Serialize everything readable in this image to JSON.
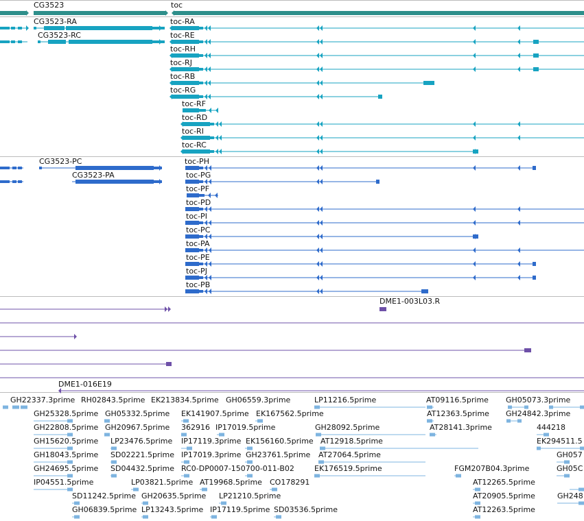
{
  "colors": {
    "gene": "#2e8f8b",
    "transcript_a": "#17a3c1",
    "transcript_b": "#2e6bcb",
    "clone": "#6e50a8",
    "est": "#7eb4e0",
    "divider": "#bbbbbb"
  },
  "genes": [
    {
      "label": "CG3523"
    },
    {
      "label": "toc"
    }
  ],
  "transcripts_a": [
    {
      "label": "CG3523-RA"
    },
    {
      "label": "CG3523-RC"
    },
    {
      "label": "toc-RA"
    },
    {
      "label": "toc-RE"
    },
    {
      "label": "toc-RH"
    },
    {
      "label": "toc-RJ"
    },
    {
      "label": "toc-RB"
    },
    {
      "label": "toc-RG"
    },
    {
      "label": "toc-RF"
    },
    {
      "label": "toc-RD"
    },
    {
      "label": "toc-RI"
    },
    {
      "label": "toc-RC"
    }
  ],
  "transcripts_b": [
    {
      "label": "CG3523-PC"
    },
    {
      "label": "CG3523-PA"
    },
    {
      "label": "toc-PH"
    },
    {
      "label": "toc-PG"
    },
    {
      "label": "toc-PF"
    },
    {
      "label": "toc-PD"
    },
    {
      "label": "toc-PI"
    },
    {
      "label": "toc-PC"
    },
    {
      "label": "toc-PA"
    },
    {
      "label": "toc-PE"
    },
    {
      "label": "toc-PJ"
    },
    {
      "label": "toc-PB"
    }
  ],
  "clones": [
    {
      "label": "DME1-003L03.R"
    },
    {
      "label": "DME1-016E19"
    }
  ],
  "ests": [
    "GH22337.3prime",
    "RH02843.5prime",
    "EK213834.5prime",
    "GH06559.3prime",
    "LP11216.5prime",
    "AT09116.5prime",
    "GH05073.3prime",
    "GH25328.5prime",
    "GH05332.5prime",
    "EK141907.5prime",
    "EK167562.5prime",
    "AT12363.5prime",
    "GH24842.3prime",
    "GH22808.5prime",
    "GH20967.5prime",
    "362916",
    "IP17019.5prime",
    "GH28092.5prime",
    "AT28141.3prime",
    "444218",
    "GH15620.5prime",
    "LP23476.5prime",
    "IP17119.3prime",
    "EK156160.5prime",
    "AT12918.5prime",
    "EK294511.5",
    "GH18043.5prime",
    "SD02221.5prime",
    "IP17019.3prime",
    "GH23761.5prime",
    "AT27064.5prime",
    "GH057",
    "GH24695.5prime",
    "SD04432.5prime",
    "RC0-DP0007-150700-011-B02",
    "EK176519.5prime",
    "FGM207B04.3prime",
    "GH05C",
    "IP04551.5prime",
    "LP03821.5prime",
    "AT19968.5prime",
    "CO178291",
    "AT12265.5prime",
    "SD11242.5prime",
    "GH20635.5prime",
    "LP21210.5prime",
    "AT20905.5prime",
    "GH248",
    "GH06839.5prime",
    "LP13243.5prime",
    "IP17119.5prime",
    "SD03536.5prime",
    "AT12263.5prime"
  ]
}
